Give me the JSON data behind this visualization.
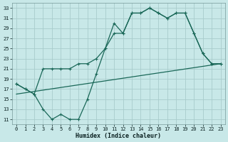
{
  "xlabel": "Humidex (Indice chaleur)",
  "xlim": [
    -0.5,
    23.5
  ],
  "ylim": [
    10,
    34
  ],
  "yticks": [
    11,
    13,
    15,
    17,
    19,
    21,
    23,
    25,
    27,
    29,
    31,
    33
  ],
  "xticks": [
    0,
    1,
    2,
    3,
    4,
    5,
    6,
    7,
    8,
    9,
    10,
    11,
    12,
    13,
    14,
    15,
    16,
    17,
    18,
    19,
    20,
    21,
    22,
    23
  ],
  "bg_color": "#c8e8e8",
  "grid_color": "#a8cccc",
  "line_color": "#1a6858",
  "curve1_x": [
    0,
    1,
    2,
    3,
    4,
    5,
    6,
    7,
    8,
    9,
    10,
    11,
    12,
    13,
    14,
    15,
    16,
    17,
    18,
    19,
    20,
    21,
    22,
    23
  ],
  "curve1_y": [
    18,
    17,
    16,
    13,
    11,
    12,
    11,
    11,
    15,
    20,
    25,
    30,
    28,
    32,
    32,
    33,
    32,
    31,
    32,
    32,
    28,
    24,
    22,
    22
  ],
  "curve2_x": [
    0,
    1,
    2,
    3,
    4,
    5,
    6,
    7,
    8,
    9,
    10,
    11,
    12,
    13,
    14,
    15,
    16,
    17,
    18,
    19,
    20,
    21,
    22,
    23
  ],
  "curve2_y": [
    18,
    17,
    16,
    21,
    21,
    21,
    21,
    22,
    22,
    23,
    25,
    28,
    28,
    32,
    32,
    33,
    32,
    31,
    32,
    32,
    28,
    24,
    22,
    22
  ],
  "line3_x": [
    0,
    23
  ],
  "line3_y": [
    16,
    22
  ]
}
